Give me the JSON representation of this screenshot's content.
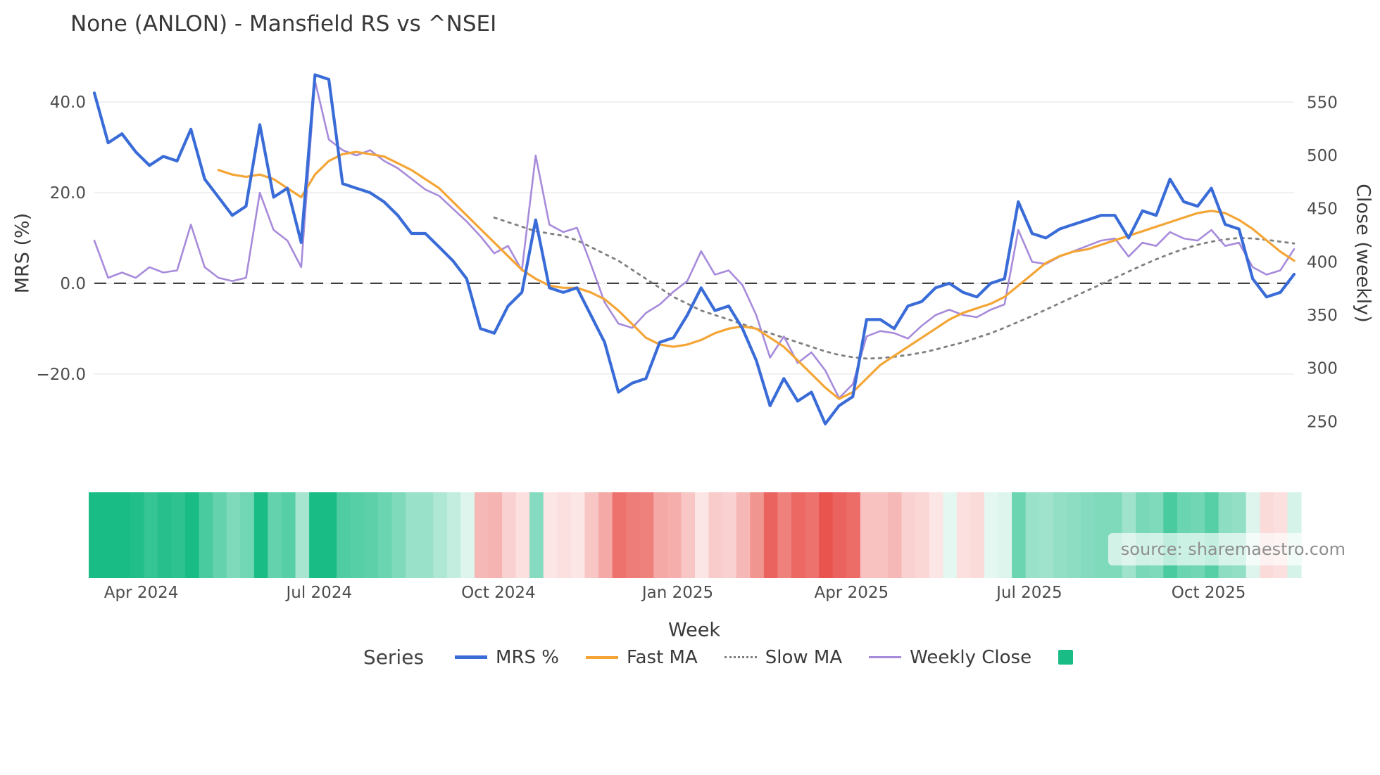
{
  "title": "None (ANLON) - Mansfield RS vs ^NSEI",
  "source_note": "source: sharemaestro.com",
  "axes": {
    "y_left": {
      "label": "MRS (%)",
      "ticks": [
        40,
        20,
        0,
        -20
      ],
      "tick_labels": [
        "40.0",
        "20.0",
        "0.0",
        "−20.0"
      ]
    },
    "y_right": {
      "label": "Close (weekly)",
      "ticks": [
        550,
        500,
        450,
        400,
        350,
        300,
        250
      ],
      "tick_labels": [
        "550",
        "500",
        "450",
        "400",
        "350",
        "300",
        "250"
      ]
    },
    "x": {
      "label": "Week",
      "ticks": [
        {
          "label": "Apr 2024",
          "week": 3.4
        },
        {
          "label": "Jul 2024",
          "week": 16.3
        },
        {
          "label": "Oct 2024",
          "week": 29.3
        },
        {
          "label": "Jan 2025",
          "week": 42.3
        },
        {
          "label": "Apr 2025",
          "week": 54.9
        },
        {
          "label": "Jul 2025",
          "week": 67.8
        },
        {
          "label": "Oct 2025",
          "week": 80.8
        }
      ]
    }
  },
  "legend": {
    "label": "Series",
    "items": [
      {
        "label": "MRS %",
        "color": "#3a6cd8",
        "style": "solid",
        "swatch_width": 5
      },
      {
        "label": "Fast MA",
        "color": "#f4a536",
        "style": "solid",
        "swatch_width": 4
      },
      {
        "label": "Slow MA",
        "color": "#7f7f7f",
        "style": "dotted",
        "swatch_width": 3
      },
      {
        "label": "Weekly Close",
        "color": "#a78bdb",
        "style": "solid",
        "swatch_width": 3
      }
    ],
    "extra_swatch_color": "#1abc86"
  },
  "chart_data": {
    "type": "line",
    "title": "None (ANLON) - Mansfield RS vs ^NSEI",
    "xlabel": "Week",
    "ylabel_left": "MRS (%)",
    "ylabel_right": "Close (weekly)",
    "n_points": 88,
    "y_left_range": [
      -34,
      47
    ],
    "y_right_range": [
      235,
      580
    ],
    "zero_line": 0,
    "grid": "horizontal",
    "legend_position": "bottom",
    "series": [
      {
        "name": "MRS %",
        "axis": "left",
        "color": "#3a6cd8",
        "style": "solid",
        "width": 4.2,
        "values": [
          42,
          31,
          33,
          29,
          26,
          28,
          27,
          34,
          23,
          19,
          15,
          17,
          35,
          19,
          21,
          9,
          46,
          45,
          22,
          21,
          20,
          18,
          15,
          11,
          11,
          8,
          5,
          1,
          -10,
          -11,
          -5,
          -2,
          14,
          -1,
          -2,
          -1,
          -7,
          -13,
          -24,
          -22,
          -21,
          -13,
          -12,
          -7,
          -1,
          -6,
          -5,
          -10,
          -17,
          -27,
          -21,
          -26,
          -24,
          -31,
          -27,
          -25,
          -8,
          -8,
          -10,
          -5,
          -4,
          -1,
          0,
          -2,
          -3,
          0,
          1,
          18,
          11,
          10,
          12,
          13,
          14,
          15,
          15,
          10,
          16,
          15,
          23,
          18,
          17,
          21,
          13,
          12,
          1,
          -3,
          -2,
          2
        ]
      },
      {
        "name": "Fast MA",
        "axis": "left",
        "color": "#f4a536",
        "style": "solid",
        "width": 3.2,
        "values": [
          null,
          null,
          null,
          null,
          null,
          null,
          null,
          null,
          null,
          25,
          24,
          23.5,
          24,
          23,
          21,
          19,
          24,
          27,
          28.5,
          29,
          28.5,
          28,
          26.5,
          25,
          23,
          21,
          18,
          15,
          12,
          9,
          6,
          3,
          1,
          -0.5,
          -1,
          -1,
          -2,
          -3.5,
          -6,
          -9,
          -12,
          -13.5,
          -14,
          -13.5,
          -12.5,
          -11,
          -10,
          -9.5,
          -10,
          -12,
          -14,
          -17,
          -20,
          -23,
          -25.5,
          -24,
          -21,
          -18,
          -16,
          -14,
          -12,
          -10,
          -8,
          -6.5,
          -5.5,
          -4.5,
          -3,
          -0.5,
          2,
          4.5,
          6,
          7,
          7.5,
          8.5,
          9.5,
          10.5,
          11.5,
          12.5,
          13.5,
          14.5,
          15.5,
          16,
          15.5,
          14,
          12,
          9.5,
          7,
          5
        ]
      },
      {
        "name": "Slow MA",
        "axis": "left",
        "color": "#7f7f7f",
        "style": "dotted",
        "width": 2.8,
        "values": [
          null,
          null,
          null,
          null,
          null,
          null,
          null,
          null,
          null,
          null,
          null,
          null,
          null,
          null,
          null,
          null,
          null,
          null,
          null,
          null,
          null,
          null,
          null,
          null,
          null,
          null,
          null,
          null,
          null,
          14.5,
          13.5,
          12.5,
          11.5,
          11,
          10.5,
          9.5,
          8,
          6.5,
          5,
          3,
          1,
          -1,
          -3,
          -4.5,
          -6,
          -7,
          -8,
          -9,
          -10,
          -11,
          -12,
          -13,
          -14,
          -15,
          -15.8,
          -16.3,
          -16.6,
          -16.5,
          -16.2,
          -15.8,
          -15.3,
          -14.6,
          -13.8,
          -13,
          -12,
          -11,
          -9.8,
          -8.5,
          -7.2,
          -5.8,
          -4.4,
          -3,
          -1.6,
          -0.2,
          1.2,
          2.6,
          4,
          5.3,
          6.5,
          7.6,
          8.5,
          9.2,
          9.7,
          10,
          9.9,
          9.6,
          9.2,
          8.8
        ]
      },
      {
        "name": "Weekly Close",
        "axis": "right",
        "color": "#a78bdb",
        "style": "solid",
        "width": 2.6,
        "values": [
          420,
          385,
          390,
          385,
          395,
          390,
          392,
          435,
          395,
          385,
          382,
          385,
          465,
          430,
          420,
          395,
          570,
          515,
          505,
          500,
          505,
          495,
          488,
          478,
          468,
          462,
          450,
          438,
          424,
          408,
          415,
          392,
          500,
          435,
          428,
          432,
          398,
          362,
          342,
          338,
          352,
          360,
          372,
          382,
          410,
          388,
          392,
          378,
          350,
          310,
          330,
          305,
          315,
          298,
          272,
          285,
          330,
          335,
          333,
          328,
          340,
          350,
          355,
          350,
          348,
          355,
          360,
          430,
          400,
          398,
          405,
          410,
          415,
          420,
          422,
          405,
          418,
          415,
          428,
          422,
          420,
          430,
          415,
          418,
          395,
          388,
          392,
          412
        ]
      }
    ],
    "heatmap": {
      "based_on": "MRS %",
      "positive_color": "#1abc86",
      "negative_color": "#e9544e"
    }
  }
}
